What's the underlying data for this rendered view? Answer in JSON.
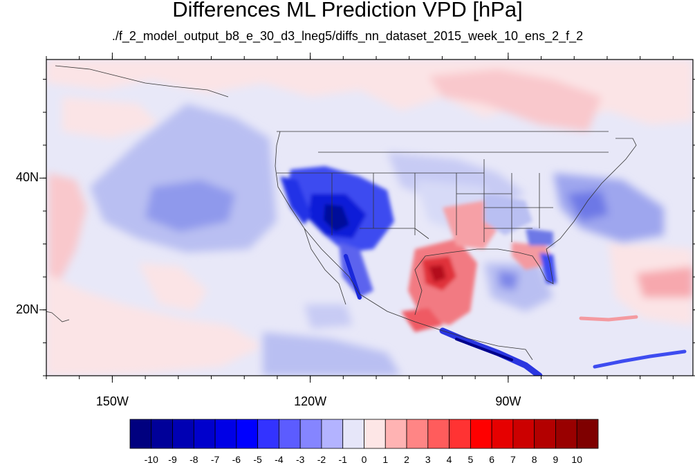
{
  "figure": {
    "title": "Differences ML Prediction VPD [hPa]",
    "subtitle": "./f_2_model_output_b8_e_30_d3_lneg5/diffs_nn_dataset_2015_week_10_ens_2_f_2"
  },
  "axes": {
    "lon_range": [
      -160,
      -62
    ],
    "lat_range": [
      10,
      58
    ],
    "lon_ticks": [
      {
        "value": -150,
        "label": "150W"
      },
      {
        "value": -120,
        "label": "120W"
      },
      {
        "value": -90,
        "label": "90W"
      }
    ],
    "lat_ticks": [
      {
        "value": 40,
        "label": "40N"
      },
      {
        "value": 20,
        "label": "20N"
      }
    ]
  },
  "colorbar": {
    "labels": [
      "-10",
      "-9",
      "-8",
      "-7",
      "-6",
      "-5",
      "-4",
      "-3",
      "-2",
      "-1",
      "0",
      "1",
      "2",
      "3",
      "4",
      "5",
      "6",
      "7",
      "8",
      "9",
      "10"
    ],
    "colors": [
      "#00007f",
      "#000099",
      "#0000b3",
      "#0000cc",
      "#0000e6",
      "#0000ff",
      "#3333ff",
      "#5c5cff",
      "#8585ff",
      "#b3b3ff",
      "#e6e6f9",
      "#fde6e6",
      "#ffb3b3",
      "#ff8585",
      "#ff5c5c",
      "#ff3333",
      "#ff0000",
      "#e60000",
      "#cc0000",
      "#b30000",
      "#990000",
      "#7f0000"
    ]
  },
  "colors": {
    "background_field": "#e8e8f8",
    "coast": "#333333"
  }
}
